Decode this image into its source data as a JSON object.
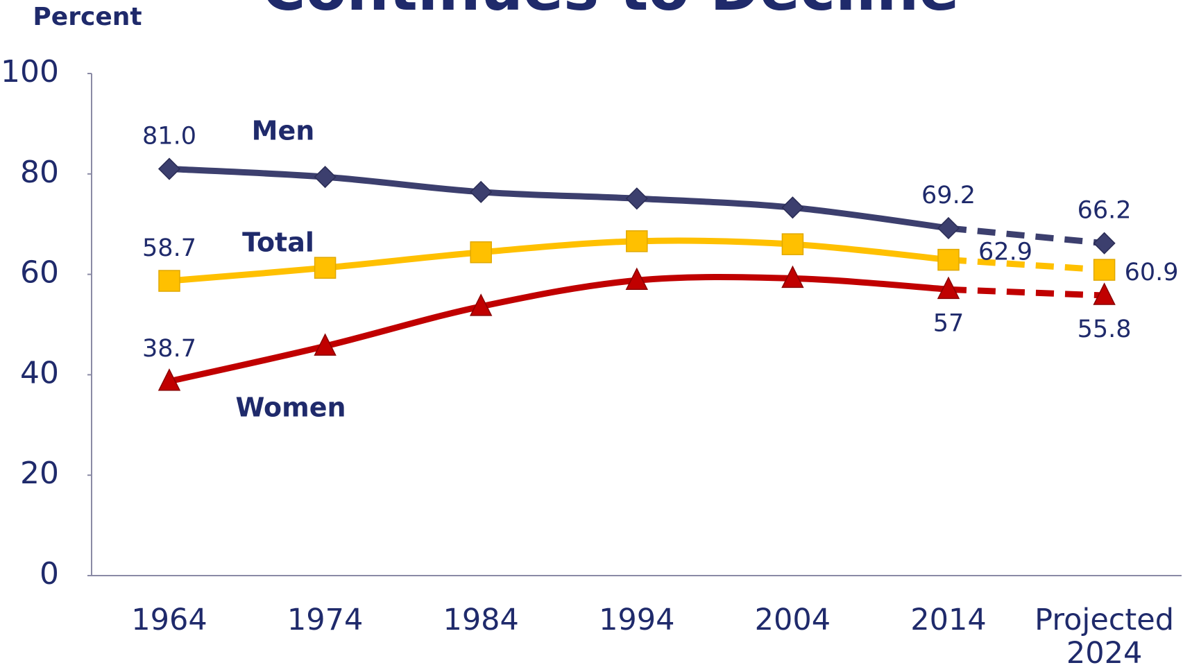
{
  "chart_data": {
    "type": "line",
    "title": "Continues to Decline",
    "y_label": "Percent",
    "categories": [
      "1964",
      "1974",
      "1984",
      "1994",
      "2004",
      "2014",
      "Projected 2024"
    ],
    "projected_from": 5,
    "ylim": [
      0,
      100
    ],
    "yticks": [
      0,
      20,
      40,
      60,
      80,
      100
    ],
    "grid": false,
    "series": [
      {
        "name": "Men",
        "color": "#3c3f6e",
        "marker": "diamond",
        "values": [
          81.0,
          79.4,
          76.4,
          75.1,
          73.3,
          69.2,
          66.2
        ],
        "value_labels": [
          "81.0",
          null,
          null,
          null,
          null,
          "69.2",
          "66.2"
        ]
      },
      {
        "name": "Total",
        "color": "#ffc000",
        "marker": "square",
        "values": [
          58.7,
          61.3,
          64.4,
          66.6,
          66.0,
          62.9,
          60.9
        ],
        "value_labels": [
          "58.7",
          null,
          null,
          null,
          null,
          "62.9",
          "60.9"
        ]
      },
      {
        "name": "Women",
        "color": "#c00000",
        "marker": "triangle",
        "values": [
          38.7,
          45.7,
          53.6,
          58.8,
          59.2,
          57,
          55.8
        ],
        "value_labels": [
          "38.7",
          null,
          null,
          null,
          null,
          "57",
          "55.8"
        ]
      }
    ]
  }
}
